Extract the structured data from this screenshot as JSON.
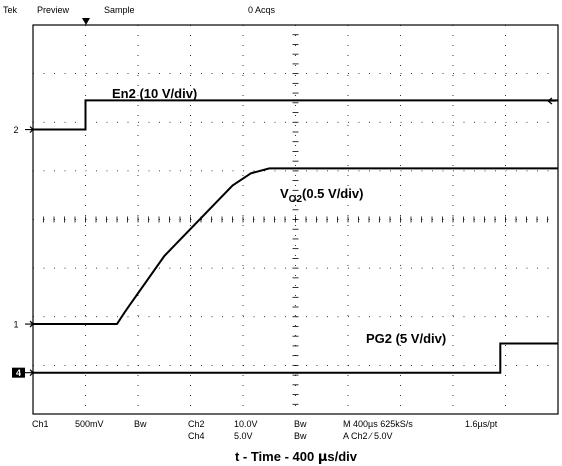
{
  "header": {
    "brand": "Tek",
    "mode": "Preview",
    "acq_mode": "Sample",
    "acqs": "0 Acqs"
  },
  "footer": {
    "ch1": "Ch1",
    "ch1_scale": "500mV",
    "bw1": "Bw",
    "ch2": "Ch2",
    "ch2_scale": "10.0V",
    "bw2": "Bw",
    "ch4": "Ch4",
    "ch4_scale": "5.0V",
    "bw4": "Bw",
    "timebase": "M 400µs 625kS/s",
    "trigger": "A  Ch2  ⁄  5.0V",
    "record": "1.6µs/pt"
  },
  "x_axis_title": {
    "prefix": "t - Time - 400 ",
    "mu": "µ",
    "suffix": "s/div"
  },
  "chart_data": {
    "type": "line",
    "x_unit_per_div": "400 µs",
    "x_divisions": 10,
    "y_divisions": 8,
    "grid": true,
    "series": [
      {
        "label_main": "En2 (10 V/div)",
        "marker": "2",
        "x_div": [
          0,
          1.0,
          1.0,
          10
        ],
        "y_div": [
          5.85,
          5.85,
          6.45,
          6.45
        ],
        "color": "#000000"
      },
      {
        "label_main": "V",
        "label_sub": "O2",
        "label_rest": "(0.5 V/div)",
        "marker": "1",
        "x_div": [
          0,
          1.6,
          1.75,
          2.5,
          3.8,
          4.15,
          4.5,
          10
        ],
        "y_div": [
          1.85,
          1.85,
          2.1,
          3.25,
          4.7,
          4.95,
          5.05,
          5.05
        ],
        "color": "#000000"
      },
      {
        "label_main": "PG2 (5 V/div)",
        "marker": "4",
        "x_div": [
          0,
          8.9,
          8.9,
          10
        ],
        "y_div": [
          0.85,
          0.85,
          1.45,
          1.45
        ],
        "color": "#000000"
      }
    ]
  }
}
